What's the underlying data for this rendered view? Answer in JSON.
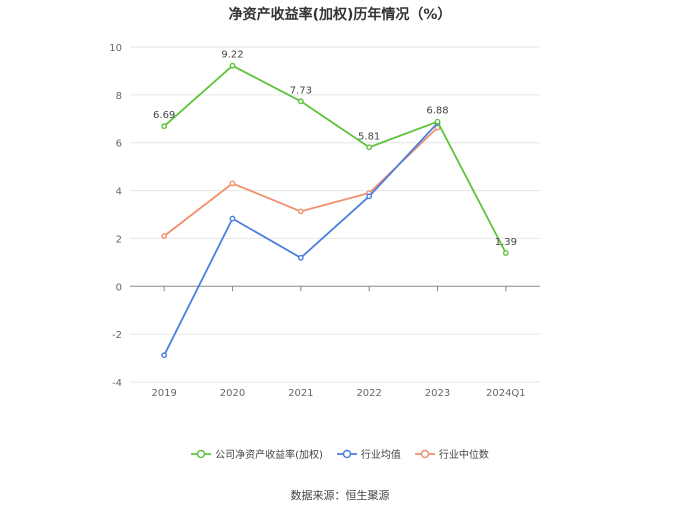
{
  "chart_data": {
    "type": "line",
    "title": "净资产收益率(加权)历年情况（%）",
    "categories": [
      "2019",
      "2020",
      "2021",
      "2022",
      "2023",
      "2024Q1"
    ],
    "ylim": [
      -4,
      10
    ],
    "yticks": [
      -4,
      -2,
      0,
      2,
      4,
      6,
      8,
      10
    ],
    "grid": true,
    "legend_position": "bottom",
    "series": [
      {
        "name": "公司净资产收益率(加权)",
        "color": "#5cc33b",
        "values": [
          6.69,
          9.22,
          7.73,
          5.81,
          6.88,
          1.39
        ],
        "labels": [
          "6.69",
          "9.22",
          "7.73",
          "5.81",
          "6.88",
          "1.39"
        ]
      },
      {
        "name": "行业均值",
        "color": "#4a7ee0",
        "values": [
          -2.88,
          2.83,
          1.19,
          3.76,
          6.82,
          null
        ]
      },
      {
        "name": "行业中位数",
        "color": "#f0906c",
        "values": [
          2.1,
          4.3,
          3.13,
          3.9,
          6.63,
          null
        ]
      }
    ]
  },
  "source_text": "数据来源：恒生聚源"
}
